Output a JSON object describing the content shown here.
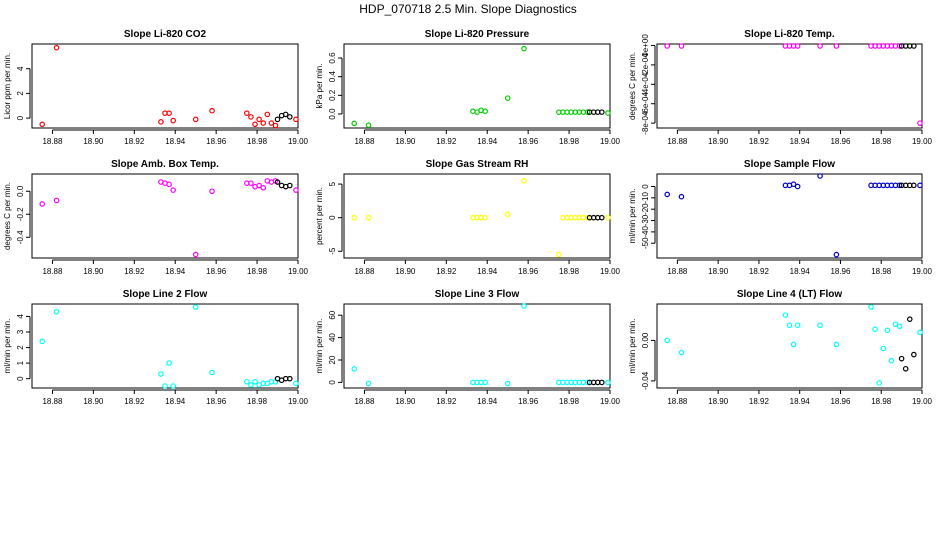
{
  "page": {
    "title": "HDP_070718  2.5 Min. Slope Diagnostics"
  },
  "chart_data": [
    {
      "type": "scatter",
      "title": "Slope Li-820 CO2",
      "ylabel": "Licor ppm per min.",
      "xlim": [
        18.87,
        19.0
      ],
      "ylim": [
        -0.8,
        6.0
      ],
      "xticks": [
        18.88,
        18.9,
        18.92,
        18.94,
        18.96,
        18.98,
        19.0
      ],
      "yticks": [
        0,
        2,
        4
      ],
      "ytick_labels": [
        "0",
        "2",
        "4"
      ],
      "color": "#ff0000",
      "x": [
        18.875,
        18.882,
        18.933,
        18.935,
        18.937,
        18.939,
        18.95,
        18.958,
        18.975,
        18.977,
        18.979,
        18.981,
        18.983,
        18.985,
        18.987,
        18.989,
        18.999
      ],
      "y": [
        -0.5,
        5.7,
        -0.3,
        0.4,
        0.4,
        -0.2,
        -0.1,
        0.6,
        0.4,
        0.1,
        -0.5,
        -0.1,
        -0.4,
        0.3,
        -0.4,
        -0.6,
        -0.1
      ],
      "black_x": [
        18.99,
        18.992,
        18.994,
        18.996
      ],
      "black_y": [
        -0.1,
        0.2,
        0.3,
        0.1
      ]
    },
    {
      "type": "scatter",
      "title": "Slope Li-820 Pressure",
      "ylabel": "kPa per min.",
      "xlim": [
        18.87,
        19.0
      ],
      "ylim": [
        -0.15,
        0.75
      ],
      "xticks": [
        18.88,
        18.9,
        18.92,
        18.94,
        18.96,
        18.98,
        19.0
      ],
      "yticks": [
        0.0,
        0.2,
        0.4,
        0.6
      ],
      "ytick_labels": [
        "0.0",
        "0.2",
        "0.4",
        "0.6"
      ],
      "color": "#00cc00",
      "x": [
        18.875,
        18.882,
        18.933,
        18.935,
        18.937,
        18.939,
        18.95,
        18.958,
        18.975,
        18.977,
        18.979,
        18.981,
        18.983,
        18.985,
        18.987,
        18.989,
        18.999
      ],
      "y": [
        -0.1,
        -0.12,
        0.03,
        0.02,
        0.04,
        0.03,
        0.17,
        0.7,
        0.02,
        0.02,
        0.02,
        0.02,
        0.02,
        0.02,
        0.02,
        0.02,
        0.01
      ],
      "black_x": [
        18.99,
        18.992,
        18.994,
        18.996
      ],
      "black_y": [
        0.02,
        0.02,
        0.02,
        0.02
      ]
    },
    {
      "type": "scatter",
      "title": "Slope Li-820 Temp.",
      "ylabel": "degrees C per min.",
      "xlim": [
        18.87,
        19.0
      ],
      "ylim": [
        -0.00085,
        1.5e-05
      ],
      "xticks": [
        18.88,
        18.9,
        18.92,
        18.94,
        18.96,
        18.98,
        19.0
      ],
      "yticks": [
        0.0,
        -0.0002,
        -0.0004,
        -0.0006,
        -0.0008
      ],
      "ytick_labels": [
        "0e+00",
        "-2e-04",
        "-4e-04",
        "-6e-04",
        "-8e-04"
      ],
      "color": "#ff00ff",
      "x": [
        18.875,
        18.882,
        18.933,
        18.935,
        18.937,
        18.939,
        18.95,
        18.958,
        18.975,
        18.977,
        18.979,
        18.981,
        18.983,
        18.985,
        18.987,
        18.989,
        18.999
      ],
      "y": [
        0,
        0,
        0,
        0,
        0,
        0,
        0,
        0,
        0,
        0,
        0,
        0,
        0,
        0,
        0,
        0,
        -0.0008
      ],
      "black_x": [
        18.99,
        18.992,
        18.994,
        18.996
      ],
      "black_y": [
        0,
        0,
        0,
        0
      ]
    },
    {
      "type": "scatter",
      "title": "Slope Amb. Box Temp.",
      "ylabel": "degrees C per min.",
      "xlim": [
        18.87,
        19.0
      ],
      "ylim": [
        -0.58,
        0.15
      ],
      "xticks": [
        18.88,
        18.9,
        18.92,
        18.94,
        18.96,
        18.98,
        19.0
      ],
      "yticks": [
        0.0,
        -0.2,
        -0.4
      ],
      "ytick_labels": [
        "0.0",
        "-0.2",
        "-0.4"
      ],
      "color": "#ff00ff",
      "x": [
        18.875,
        18.882,
        18.933,
        18.935,
        18.937,
        18.939,
        18.95,
        18.958,
        18.975,
        18.977,
        18.979,
        18.981,
        18.983,
        18.985,
        18.987,
        18.989,
        18.999
      ],
      "y": [
        -0.11,
        -0.08,
        0.08,
        0.07,
        0.06,
        0.01,
        -0.55,
        0.0,
        0.07,
        0.07,
        0.04,
        0.05,
        0.03,
        0.09,
        0.08,
        0.09,
        0.01
      ],
      "black_x": [
        18.99,
        18.992,
        18.994,
        18.996
      ],
      "black_y": [
        0.08,
        0.05,
        0.04,
        0.05
      ]
    },
    {
      "type": "scatter",
      "title": "Slope Gas Stream RH",
      "ylabel": "percent per min.",
      "xlim": [
        18.87,
        19.0
      ],
      "ylim": [
        -6.0,
        6.5
      ],
      "xticks": [
        18.88,
        18.9,
        18.92,
        18.94,
        18.96,
        18.98,
        19.0
      ],
      "yticks": [
        5,
        0,
        -5
      ],
      "ytick_labels": [
        "5",
        "0",
        "-5"
      ],
      "color": "#ffff00",
      "x": [
        18.875,
        18.882,
        18.933,
        18.935,
        18.937,
        18.939,
        18.95,
        18.958,
        18.975,
        18.977,
        18.979,
        18.981,
        18.983,
        18.985,
        18.987,
        18.989,
        18.999
      ],
      "y": [
        0,
        0,
        0,
        0,
        0,
        0,
        0.5,
        5.5,
        -5.5,
        0,
        0,
        0,
        0,
        0,
        0,
        0,
        0
      ],
      "black_x": [
        18.99,
        18.992,
        18.994,
        18.996
      ],
      "black_y": [
        0,
        0,
        0,
        0
      ]
    },
    {
      "type": "scatter",
      "title": "Slope Sample Flow",
      "ylabel": "ml/min per min.",
      "xlim": [
        18.87,
        19.0
      ],
      "ylim": [
        -63,
        11
      ],
      "xticks": [
        18.88,
        18.9,
        18.92,
        18.94,
        18.96,
        18.98,
        19.0
      ],
      "yticks": [
        0,
        -10,
        -20,
        -30,
        -40,
        -50
      ],
      "ytick_labels": [
        "0",
        "-10",
        "-20",
        "-30",
        "-40",
        "-50"
      ],
      "color": "#0000cc",
      "x": [
        18.875,
        18.882,
        18.933,
        18.935,
        18.937,
        18.939,
        18.95,
        18.958,
        18.975,
        18.977,
        18.979,
        18.981,
        18.983,
        18.985,
        18.987,
        18.989,
        18.999
      ],
      "y": [
        -7,
        -9,
        1,
        1,
        2,
        0,
        11,
        -60,
        1,
        1,
        1,
        1,
        1,
        1,
        1,
        1,
        1
      ],
      "black_x": [
        18.99,
        18.992,
        18.994,
        18.996
      ],
      "black_y": [
        1,
        1,
        1,
        1
      ]
    },
    {
      "type": "scatter",
      "title": "Slope Line 2 Flow",
      "ylabel": "ml/min per min.",
      "xlim": [
        18.87,
        19.0
      ],
      "ylim": [
        -0.6,
        4.8
      ],
      "xticks": [
        18.88,
        18.9,
        18.92,
        18.94,
        18.96,
        18.98,
        19.0
      ],
      "yticks": [
        0,
        1,
        2,
        3,
        4
      ],
      "ytick_labels": [
        "0",
        "1",
        "2",
        "3",
        "4"
      ],
      "color": "#00ffff",
      "x": [
        18.875,
        18.882,
        18.933,
        18.935,
        18.937,
        18.939,
        18.95,
        18.958,
        18.975,
        18.977,
        18.979,
        18.981,
        18.983,
        18.985,
        18.987,
        18.989,
        18.999
      ],
      "y": [
        2.4,
        4.3,
        0.3,
        -0.5,
        1.0,
        -0.6,
        4.6,
        0.4,
        -0.2,
        -0.4,
        -0.2,
        -0.4,
        -0.3,
        -0.3,
        -0.2,
        -0.2,
        -0.3
      ],
      "black_x": [
        18.99,
        18.992,
        18.994,
        18.996
      ],
      "black_y": [
        0.0,
        -0.1,
        0.0,
        0.0
      ]
    },
    {
      "type": "scatter",
      "title": "Slope Line 3 Flow",
      "ylabel": "ml/min per min.",
      "xlim": [
        18.87,
        19.0
      ],
      "ylim": [
        -5,
        70
      ],
      "xticks": [
        18.88,
        18.9,
        18.92,
        18.94,
        18.96,
        18.98,
        19.0
      ],
      "yticks": [
        0,
        20,
        40,
        60
      ],
      "ytick_labels": [
        "0",
        "20",
        "40",
        "60"
      ],
      "color": "#00ffff",
      "x": [
        18.875,
        18.882,
        18.933,
        18.935,
        18.937,
        18.939,
        18.95,
        18.958,
        18.975,
        18.977,
        18.979,
        18.981,
        18.983,
        18.985,
        18.987,
        18.989,
        18.999
      ],
      "y": [
        12,
        -1,
        0,
        0,
        0,
        0,
        -1,
        69,
        0,
        0,
        0,
        0,
        0,
        0,
        0,
        0,
        0
      ],
      "black_x": [
        18.99,
        18.992,
        18.994,
        18.996
      ],
      "black_y": [
        0,
        0,
        0,
        0
      ]
    },
    {
      "type": "scatter",
      "title": "Slope Line 4 (LT) Flow",
      "ylabel": "ml/min per min.",
      "xlim": [
        18.87,
        19.0
      ],
      "ylim": [
        -0.047,
        0.036
      ],
      "xticks": [
        18.88,
        18.9,
        18.92,
        18.94,
        18.96,
        18.98,
        19.0
      ],
      "yticks": [
        0.0,
        -0.04
      ],
      "ytick_labels": [
        "0.00",
        "-0.04"
      ],
      "color": "#00ffff",
      "x": [
        18.875,
        18.882,
        18.933,
        18.935,
        18.937,
        18.939,
        18.95,
        18.958,
        18.975,
        18.977,
        18.979,
        18.981,
        18.983,
        18.985,
        18.987,
        18.989,
        18.999
      ],
      "y": [
        0.0,
        -0.012,
        0.025,
        0.015,
        -0.004,
        0.015,
        0.015,
        -0.004,
        0.033,
        0.011,
        -0.042,
        -0.008,
        0.01,
        -0.02,
        0.016,
        0.014,
        0.008
      ],
      "black_x": [
        18.99,
        18.992,
        18.994,
        18.996
      ],
      "black_y": [
        -0.018,
        -0.028,
        0.021,
        -0.014
      ]
    }
  ]
}
